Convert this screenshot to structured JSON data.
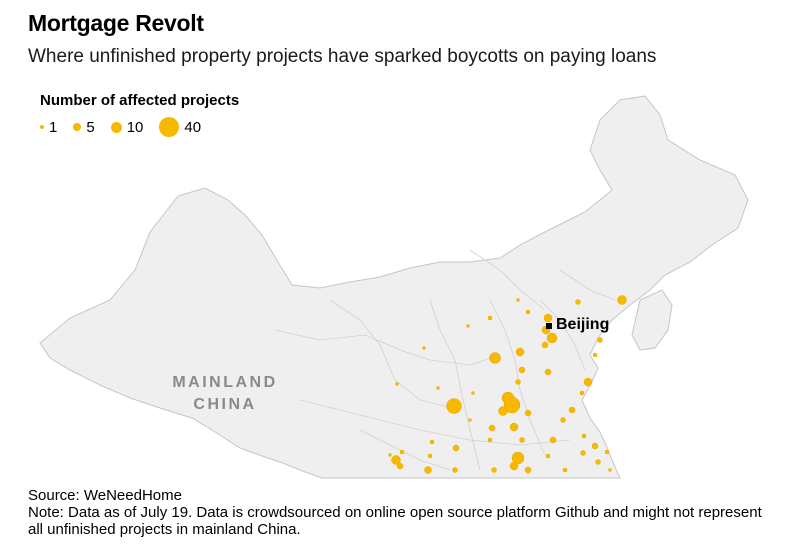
{
  "header": {
    "title": "Mortgage Revolt",
    "subtitle": "Where unfinished property projects have sparked boycotts on paying loans"
  },
  "legend": {
    "title": "Number of affected projects",
    "items": [
      {
        "label": "1",
        "value": 1
      },
      {
        "label": "5",
        "value": 5
      },
      {
        "label": "10",
        "value": 10
      },
      {
        "label": "40",
        "value": 40
      }
    ]
  },
  "map": {
    "region_label_line1": "MAINLAND",
    "region_label_line2": "CHINA",
    "city_label": "Beijing",
    "land_color": "#efefef",
    "border_color": "#c8c8c8",
    "dot_color": "#f9b800"
  },
  "footer": {
    "source": "Source: WeNeedHome",
    "note": "Note: Data as of July 19. Data is crowdsourced on online open source platform Github and might not represent all unfinished projects in mainland China."
  }
}
